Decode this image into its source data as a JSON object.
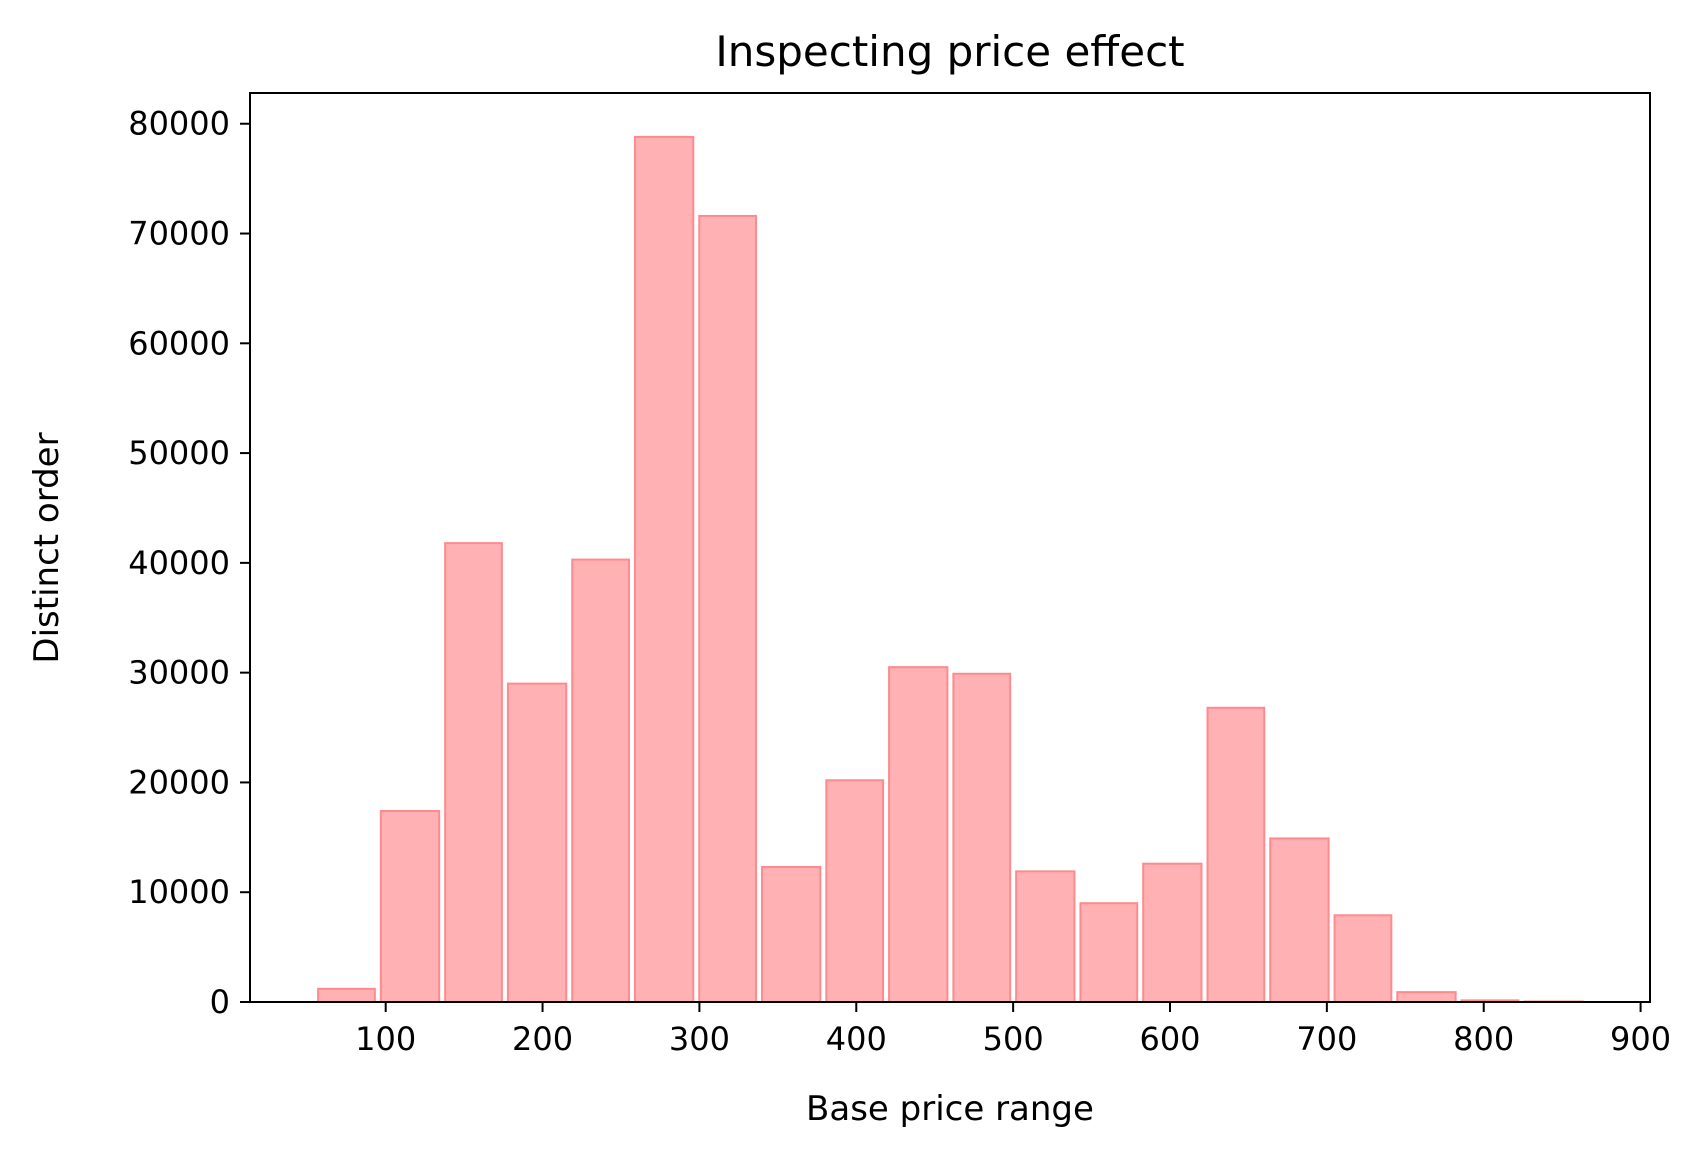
{
  "chart_data": {
    "type": "bar",
    "title": "Inspecting price effect",
    "xlabel": "Base price range",
    "ylabel": "Distinct order",
    "bin_edges": [
      55,
      95,
      136,
      176,
      217,
      257,
      298,
      338,
      379,
      419,
      460,
      500,
      541,
      581,
      622,
      662,
      703,
      743,
      784,
      824,
      865
    ],
    "values": [
      1200,
      17400,
      41800,
      29000,
      40300,
      78800,
      71600,
      12300,
      20200,
      30500,
      29900,
      11900,
      9000,
      12600,
      26800,
      14900,
      7900,
      900,
      150,
      50
    ],
    "xlim": [
      13.5,
      906
    ],
    "ylim": [
      0,
      82800
    ],
    "xticks": [
      100,
      200,
      300,
      400,
      500,
      600,
      700,
      800,
      900
    ],
    "yticks": [
      0,
      10000,
      20000,
      30000,
      40000,
      50000,
      60000,
      70000,
      80000
    ],
    "bar_fill": "#ffb1b3",
    "bar_edge": "#ff8a8e",
    "grid": false
  }
}
